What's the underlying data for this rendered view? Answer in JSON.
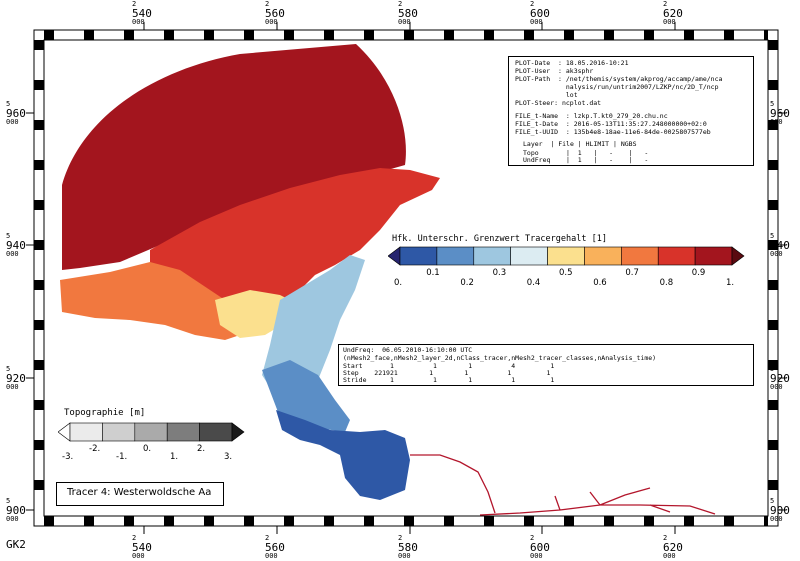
{
  "grid": {
    "x_labels": [
      {
        "top": "2",
        "mid": "540",
        "bot": "000"
      },
      {
        "top": "2",
        "mid": "560",
        "bot": "000"
      },
      {
        "top": "2",
        "mid": "580",
        "bot": "000"
      },
      {
        "top": "2",
        "mid": "600",
        "bot": "000"
      },
      {
        "top": "2",
        "mid": "620",
        "bot": "000"
      }
    ],
    "y_labels": [
      {
        "top": "5",
        "mid": "960",
        "bot": "000"
      },
      {
        "top": "5",
        "mid": "940",
        "bot": "000"
      },
      {
        "top": "5",
        "mid": "920",
        "bot": "000"
      },
      {
        "top": "5",
        "mid": "900",
        "bot": "000"
      }
    ],
    "crs_label": "GK2"
  },
  "info_box": {
    "plot_date": "PLOT-Date  : 18.05.2016-10:21",
    "plot_user": "PLOT-User  : ak3sphr",
    "plot_path_1": "PLOT-Path  : /net/themis/system/akprog/accamp/ame/nca",
    "plot_path_2": "             nalysis/run/untrim2007/LZKP/nc/2D_T/ncp",
    "plot_path_3": "             lot",
    "plot_steer": "PLOT-Steer: ncplot.dat",
    "file_name": "FILE_t-Name  : lzkp.T.kt0_279_20.chu.nc",
    "file_date": "FILE_t-Date  : 2016-05-13T11:35:27.248000000+02:0",
    "file_uuid": "FILE_t-UUID  : 135b4e8-18ae-11e6-84de-0025807577eb",
    "table_header": "Layer  | File | HLIMIT | NGBS",
    "table_row_1": "Topo       |  1   |   -    |   -",
    "table_row_2": "UndFreq    |  1   |   -    |   -"
  },
  "colorbar_tracer": {
    "title": "Hfk. Unterschr. Grenzwert Tracergehalt [1]",
    "colors": [
      "#26246f",
      "#2e58a6",
      "#5b8ec6",
      "#9ec7e0",
      "#dcecf2",
      "#fbe08e",
      "#f9b15b",
      "#f1783f",
      "#d8332a",
      "#a3151e",
      "#5a0a10"
    ],
    "labels_top": [
      "0.1",
      "0.3",
      "0.5",
      "0.7",
      "0.9"
    ],
    "labels_bottom": [
      "0.",
      "0.2",
      "0.4",
      "0.6",
      "0.8",
      "1."
    ]
  },
  "time_box": {
    "line_1": "UndFreq:  06.05.2010-16:10:00 UTC",
    "line_2": "(nMesh2_face,nMesh2_layer_2d,nClass_tracer,nMesh2_tracer_classes,nAnalysis_time)",
    "row_start": "Start       1          1        1          4         1",
    "row_step": "Step    221921        1        1          1         1",
    "row_stride": "Stride      1          1        1          1         1"
  },
  "colorbar_topo": {
    "title": "Topographie [m]",
    "colors": [
      "#ffffff",
      "#ebebeb",
      "#cfcfcf",
      "#aaaaaa",
      "#7d7d7d",
      "#4a4a4a",
      "#1a1a1a"
    ],
    "labels": [
      "-3.",
      "-2.",
      "-1.",
      "0.",
      "1.",
      "2.",
      "3."
    ]
  },
  "tracer_label": "Tracer 4: Westerwoldsche Aa",
  "map_colors": {
    "sea": "#a3151e",
    "estuary_deep": "#2e58a6",
    "estuary_mid": "#5b8ec6",
    "estuary_light": "#9ec7e0",
    "flats_orange": "#f1783f",
    "flats_yellow": "#fbe08e",
    "flats_red": "#d8332a",
    "river": "#b3162c"
  }
}
